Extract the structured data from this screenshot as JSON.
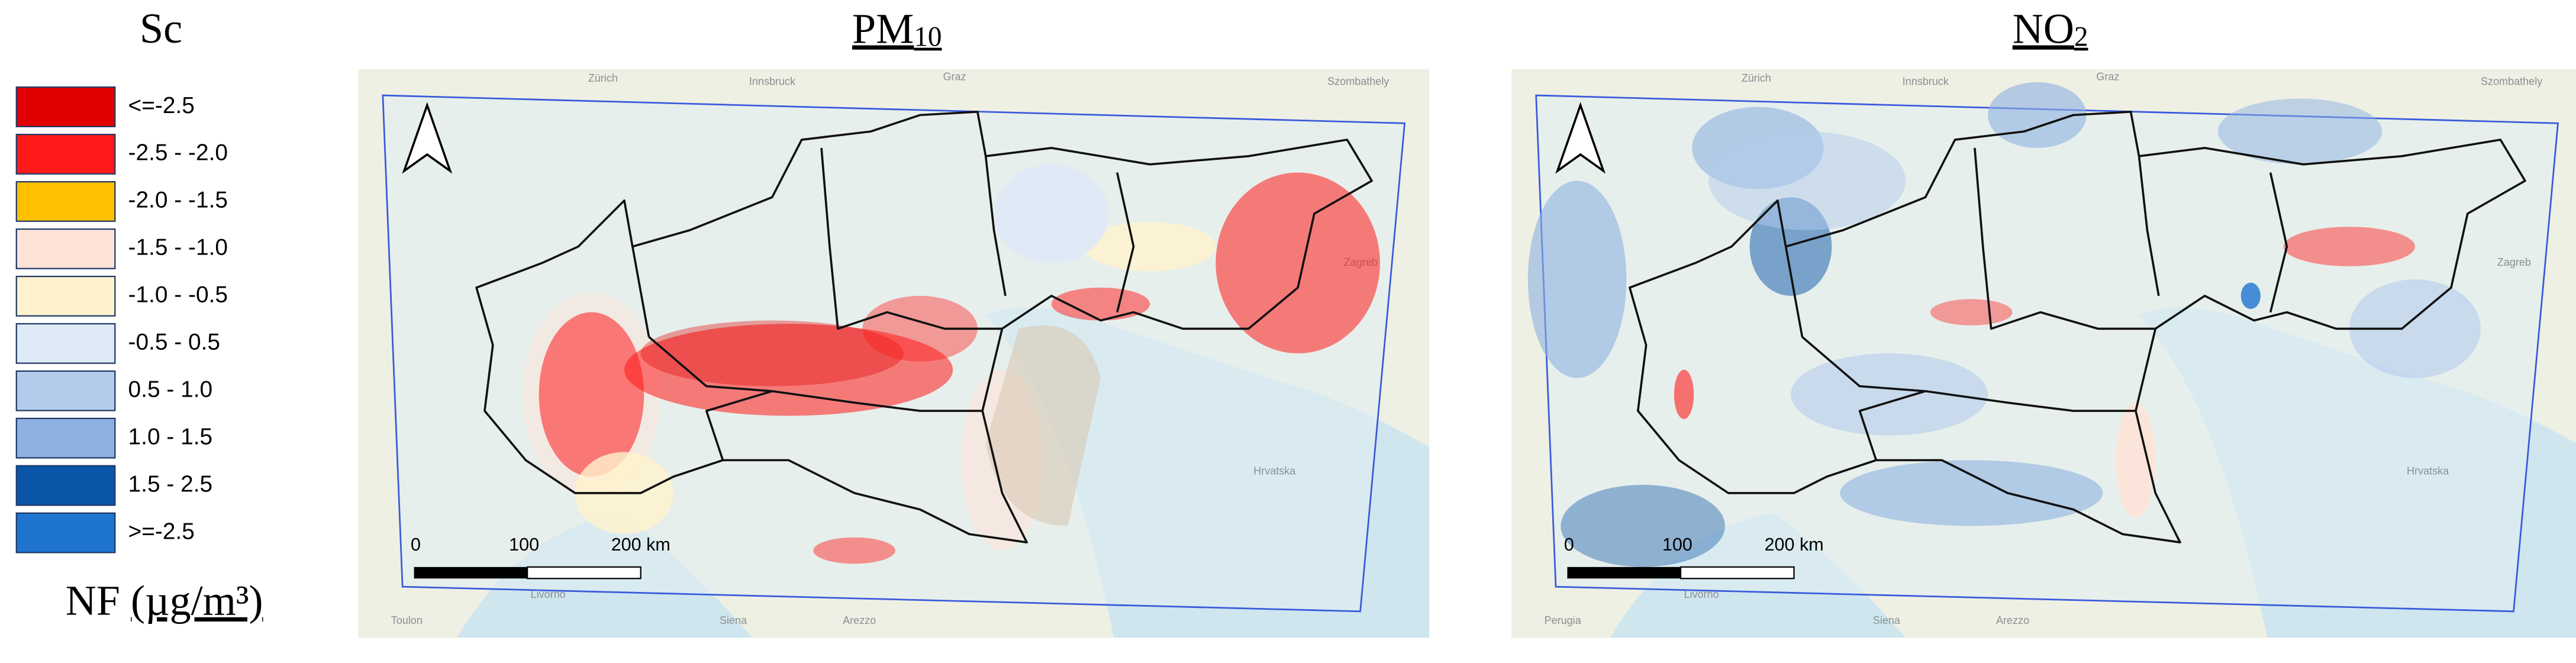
{
  "legend": {
    "title": "Sc",
    "items": [
      {
        "label": "<=-2.5",
        "color": "#e00000"
      },
      {
        "label": "-2.5 - -2.0",
        "color": "#ff1a1a"
      },
      {
        "label": "-2.0 - -1.5",
        "color": "#ffc000"
      },
      {
        "label": "-1.5 - -1.0",
        "color": "#fde3d8"
      },
      {
        "label": "-1.0 - -0.5",
        "color": "#fff2cc"
      },
      {
        "label": "-0.5 - 0.5",
        "color": "#dee9f7"
      },
      {
        "label": "0.5 - 1.0",
        "color": "#b4cbec"
      },
      {
        "label": "1.0 - 1.5",
        "color": "#8db1e1"
      },
      {
        "label": "1.5 - 2.5",
        "color": "#0b55a8"
      },
      {
        "label": ">=-2.5",
        "color": "#1f74d0"
      }
    ],
    "unit_prefix": "NF",
    "unit": "(µg/m³)"
  },
  "maps": [
    {
      "title": "PM",
      "title_subscript": "10",
      "scale_bar": [
        "0",
        "100",
        "200 km"
      ],
      "place_labels": [
        "Zürich",
        "Innsbruck",
        "Graz",
        "Szombathely",
        "Zagreb",
        "Hrvatska",
        "Livorno",
        "Siena",
        "Toulon",
        "Arezzo"
      ]
    },
    {
      "title": "NO",
      "title_subscript": "2",
      "scale_bar": [
        "0",
        "100",
        "200 km"
      ],
      "place_labels": [
        "Zürich",
        "Innsbruck",
        "Graz",
        "Szombathely",
        "Zagreb",
        "Hrvatska",
        "Livorno",
        "Siena",
        "Perugia",
        "Arezzo"
      ]
    }
  ]
}
